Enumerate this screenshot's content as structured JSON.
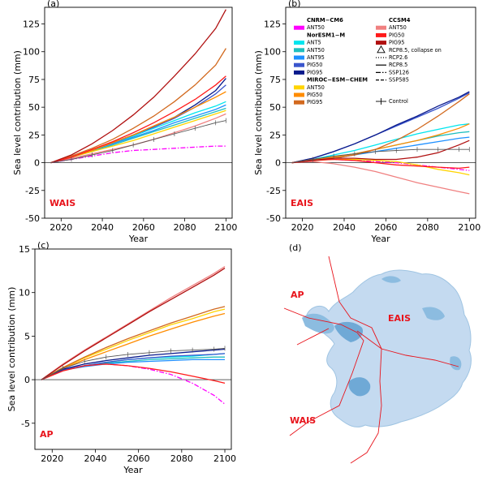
{
  "chart_data": [
    {
      "type": "line",
      "panel": "(a)",
      "region": "WAIS",
      "xlabel": "Year",
      "ylabel": "Sea level contribution (mm)",
      "xlim": [
        2012,
        2103
      ],
      "ylim": [
        -50,
        140
      ],
      "xticks": [
        2020,
        2040,
        2060,
        2080,
        2100
      ],
      "yticks": [
        -50,
        -25,
        0,
        25,
        50,
        75,
        100,
        125
      ],
      "years": [
        2015,
        2025,
        2035,
        2045,
        2055,
        2065,
        2075,
        2085,
        2095,
        2100
      ],
      "series": [
        {
          "name": "CNRM-CM6 ANT50",
          "color": "#ff00ff",
          "style": "dashdot",
          "values": [
            0,
            3,
            6,
            9,
            11,
            12,
            13,
            14,
            15,
            15
          ]
        },
        {
          "name": "NorESM1-M ANT5",
          "color": "#00e5ee",
          "style": "solid",
          "values": [
            0,
            5,
            11,
            17,
            24,
            31,
            38,
            45,
            51,
            55
          ]
        },
        {
          "name": "NorESM1-M ANT50",
          "color": "#1fbfbf",
          "style": "solid",
          "values": [
            0,
            5,
            10,
            16,
            22,
            28,
            34,
            40,
            46,
            49
          ]
        },
        {
          "name": "NorESM1-M ANT95",
          "color": "#1e90ff",
          "style": "solid",
          "values": [
            0,
            5,
            11,
            17,
            23,
            29,
            36,
            42,
            48,
            52
          ]
        },
        {
          "name": "NorESM1-M PIG50",
          "color": "#3a55cc",
          "style": "solid",
          "values": [
            0,
            5,
            11,
            18,
            25,
            32,
            40,
            50,
            62,
            70
          ]
        },
        {
          "name": "NorESM1-M PIG95",
          "color": "#0a1a8c",
          "style": "solid",
          "values": [
            0,
            5,
            11,
            18,
            25,
            33,
            41,
            52,
            65,
            76
          ]
        },
        {
          "name": "MIROC-ESM-CHEM ANT50",
          "color": "#ffd400",
          "style": "solid",
          "values": [
            0,
            5,
            10,
            15,
            20,
            26,
            32,
            38,
            44,
            47
          ]
        },
        {
          "name": "MIROC-ESM-CHEM PIG50",
          "color": "#ff8c00",
          "style": "solid",
          "values": [
            0,
            5,
            11,
            18,
            25,
            33,
            41,
            50,
            59,
            64
          ]
        },
        {
          "name": "MIROC-ESM-CHEM PIG95",
          "color": "#d2691e",
          "style": "solid",
          "values": [
            0,
            6,
            13,
            21,
            31,
            42,
            55,
            70,
            88,
            103
          ]
        },
        {
          "name": "CCSM4 ANT50",
          "color": "#f08080",
          "style": "solid",
          "values": [
            0,
            4,
            8,
            12,
            16,
            21,
            27,
            33,
            40,
            44
          ]
        },
        {
          "name": "CCSM4 PIG50",
          "color": "#ff1a1a",
          "style": "solid",
          "values": [
            0,
            5,
            12,
            19,
            27,
            36,
            46,
            57,
            70,
            78
          ]
        },
        {
          "name": "CCSM4 PIG95",
          "color": "#b01010",
          "style": "solid",
          "values": [
            0,
            7,
            17,
            29,
            43,
            59,
            78,
            98,
            121,
            138
          ]
        },
        {
          "name": "Control",
          "color": "#555555",
          "style": "errorbar",
          "values": [
            0,
            3,
            7,
            11,
            16,
            21,
            26,
            31,
            36,
            38
          ]
        }
      ]
    },
    {
      "type": "line",
      "panel": "(b)",
      "region": "EAIS",
      "xlabel": "Year",
      "ylabel": "Sea level contribution (mm)",
      "xlim": [
        2012,
        2103
      ],
      "ylim": [
        -50,
        140
      ],
      "xticks": [
        2020,
        2040,
        2060,
        2080,
        2100
      ],
      "yticks": [
        -50,
        -25,
        0,
        25,
        50,
        75,
        100,
        125
      ],
      "years": [
        2015,
        2025,
        2035,
        2045,
        2055,
        2065,
        2075,
        2085,
        2095,
        2100
      ],
      "series": [
        {
          "name": "CNRM-CM6 ANT50",
          "color": "#ff00ff",
          "style": "dashdot",
          "values": [
            0,
            3,
            3,
            2,
            1,
            0,
            -2,
            -4,
            -6,
            -7
          ]
        },
        {
          "name": "NorESM1-M ANT5",
          "color": "#00e5ee",
          "style": "solid",
          "values": [
            0,
            3,
            7,
            11,
            16,
            21,
            26,
            30,
            34,
            35
          ]
        },
        {
          "name": "NorESM1-M ANT50",
          "color": "#1fbfbf",
          "style": "solid",
          "values": [
            0,
            2,
            5,
            8,
            12,
            16,
            20,
            24,
            27,
            28
          ]
        },
        {
          "name": "NorESM1-M ANT95",
          "color": "#1e90ff",
          "style": "solid",
          "values": [
            0,
            2,
            4,
            7,
            10,
            13,
            16,
            19,
            22,
            23
          ]
        },
        {
          "name": "NorESM1-M PIG50",
          "color": "#3a55cc",
          "style": "solid",
          "values": [
            0,
            4,
            10,
            17,
            25,
            33,
            41,
            49,
            58,
            63
          ]
        },
        {
          "name": "NorESM1-M PIG95",
          "color": "#0a1a8c",
          "style": "solid",
          "values": [
            0,
            4,
            10,
            17,
            25,
            34,
            42,
            51,
            59,
            64
          ]
        },
        {
          "name": "MIROC-ESM-CHEM ANT50",
          "color": "#ffd400",
          "style": "solid",
          "values": [
            0,
            2,
            3,
            3,
            2,
            1,
            -2,
            -6,
            -9,
            -11
          ]
        },
        {
          "name": "MIROC-ESM-CHEM PIG50",
          "color": "#ff8c00",
          "style": "solid",
          "values": [
            0,
            3,
            5,
            8,
            12,
            16,
            20,
            25,
            31,
            35
          ]
        },
        {
          "name": "MIROC-ESM-CHEM PIG95",
          "color": "#d2691e",
          "style": "solid",
          "values": [
            0,
            2,
            4,
            7,
            12,
            20,
            30,
            42,
            55,
            62
          ]
        },
        {
          "name": "CCSM4 ANT50",
          "color": "#f08080",
          "style": "solid",
          "values": [
            0,
            1,
            -1,
            -4,
            -8,
            -13,
            -18,
            -22,
            -26,
            -28
          ]
        },
        {
          "name": "CCSM4 PIG50",
          "color": "#ff1a1a",
          "style": "solid",
          "values": [
            0,
            2,
            3,
            2,
            0,
            -2,
            -3,
            -4,
            -5,
            -4
          ]
        },
        {
          "name": "CCSM4 PIG95",
          "color": "#b01010",
          "style": "solid",
          "values": [
            0,
            2,
            4,
            4,
            3,
            3,
            5,
            9,
            16,
            20
          ]
        },
        {
          "name": "Control",
          "color": "#555555",
          "style": "errorbar",
          "values": [
            0,
            3,
            6,
            8,
            10,
            11,
            12,
            12,
            12,
            12
          ]
        }
      ]
    },
    {
      "type": "line",
      "panel": "(c)",
      "region": "AP",
      "xlabel": "Year",
      "ylabel": "Sea level contribution (mm)",
      "xlim": [
        2012,
        2103
      ],
      "ylim": [
        -8,
        15
      ],
      "xticks": [
        2020,
        2040,
        2060,
        2080,
        2100
      ],
      "yticks": [
        -5,
        0,
        5,
        10,
        15
      ],
      "years": [
        2015,
        2025,
        2035,
        2045,
        2055,
        2065,
        2075,
        2085,
        2095,
        2100
      ],
      "series": [
        {
          "name": "CNRM-CM6 ANT50",
          "color": "#ff00ff",
          "style": "dashdot",
          "values": [
            0,
            1.2,
            1.6,
            1.8,
            1.6,
            1.2,
            0.6,
            -0.4,
            -1.8,
            -2.8
          ]
        },
        {
          "name": "NorESM1-M ANT5",
          "color": "#00e5ee",
          "style": "solid",
          "values": [
            0,
            1.1,
            1.6,
            2.0,
            2.3,
            2.5,
            2.6,
            2.7,
            2.9,
            3.0
          ]
        },
        {
          "name": "NorESM1-M ANT50",
          "color": "#1fbfbf",
          "style": "solid",
          "values": [
            0,
            1.1,
            1.6,
            1.9,
            2.1,
            2.3,
            2.4,
            2.5,
            2.6,
            2.6
          ]
        },
        {
          "name": "NorESM1-M ANT95",
          "color": "#1e90ff",
          "style": "solid",
          "values": [
            0,
            1.1,
            1.5,
            1.8,
            2.0,
            2.1,
            2.2,
            2.3,
            2.3,
            2.3
          ]
        },
        {
          "name": "NorESM1-M PIG50",
          "color": "#3a55cc",
          "style": "solid",
          "values": [
            0,
            1.1,
            1.6,
            2.0,
            2.3,
            2.5,
            2.7,
            2.8,
            2.9,
            3.0
          ]
        },
        {
          "name": "NorESM1-M PIG95",
          "color": "#0a1a8c",
          "style": "solid",
          "values": [
            0,
            1.2,
            1.8,
            2.2,
            2.5,
            2.8,
            3.0,
            3.2,
            3.4,
            3.5
          ]
        },
        {
          "name": "MIROC-ESM-CHEM ANT50",
          "color": "#ffd400",
          "style": "solid",
          "values": [
            0,
            1.4,
            2.5,
            3.5,
            4.5,
            5.4,
            6.3,
            7.0,
            7.8,
            8.1
          ]
        },
        {
          "name": "MIROC-ESM-CHEM PIG50",
          "color": "#ff8c00",
          "style": "solid",
          "values": [
            0,
            1.3,
            2.3,
            3.2,
            4.1,
            5.0,
            5.8,
            6.6,
            7.3,
            7.6
          ]
        },
        {
          "name": "MIROC-ESM-CHEM PIG95",
          "color": "#d2691e",
          "style": "solid",
          "values": [
            0,
            1.4,
            2.6,
            3.7,
            4.7,
            5.6,
            6.5,
            7.3,
            8.1,
            8.4
          ]
        },
        {
          "name": "CCSM4 ANT50",
          "color": "#f08080",
          "style": "solid",
          "values": [
            0,
            1.8,
            3.4,
            4.9,
            6.4,
            7.9,
            9.4,
            10.8,
            12.2,
            13.0
          ]
        },
        {
          "name": "CCSM4 PIG50",
          "color": "#ff1a1a",
          "style": "solid",
          "values": [
            0,
            1.0,
            1.6,
            1.8,
            1.6,
            1.3,
            0.9,
            0.4,
            -0.1,
            -0.4
          ]
        },
        {
          "name": "CCSM4 PIG95",
          "color": "#b01010",
          "style": "solid",
          "values": [
            0,
            1.7,
            3.3,
            4.8,
            6.3,
            7.8,
            9.2,
            10.6,
            12.0,
            12.8
          ]
        },
        {
          "name": "Control",
          "color": "#555555",
          "style": "errorbar",
          "values": [
            0,
            1.3,
            2.1,
            2.6,
            2.9,
            3.1,
            3.3,
            3.4,
            3.5,
            3.6
          ]
        }
      ]
    }
  ],
  "legend": {
    "groups": [
      {
        "title": "CNRM−CM6",
        "items": [
          {
            "label": "ANT50",
            "color": "#ff00ff"
          }
        ]
      },
      {
        "title": "NorESM1−M",
        "items": [
          {
            "label": "ANT5",
            "color": "#00e5ee"
          },
          {
            "label": "ANT50",
            "color": "#1fbfbf"
          },
          {
            "label": "ANT95",
            "color": "#1e90ff"
          },
          {
            "label": "PIG50",
            "color": "#3a55cc"
          },
          {
            "label": "PIG95",
            "color": "#0a1a8c"
          }
        ]
      },
      {
        "title": "MIROC−ESM−CHEM",
        "items": [
          {
            "label": "ANT50",
            "color": "#ffd400"
          },
          {
            "label": "PIG50",
            "color": "#ff8c00"
          },
          {
            "label": "PIG95",
            "color": "#d2691e"
          }
        ]
      },
      {
        "title": "CCSM4",
        "items": [
          {
            "label": "ANT50",
            "color": "#f08080"
          },
          {
            "label": "PIG50",
            "color": "#ff1a1a"
          },
          {
            "label": "PIG95",
            "color": "#b01010"
          }
        ]
      }
    ],
    "styles": [
      {
        "label": "RCP8.5, collapse on",
        "marker": "triangle"
      },
      {
        "label": "RCP2.6",
        "marker": "dotted"
      },
      {
        "label": "RCP8.5",
        "marker": "solid"
      },
      {
        "label": "SSP126",
        "marker": "dashdot"
      },
      {
        "label": "SSP585",
        "marker": "dashed"
      }
    ],
    "control": {
      "label": "Control",
      "marker": "errorbar"
    }
  },
  "map": {
    "panel": "(d)",
    "labels": {
      "ap": "AP",
      "eais": "EAIS",
      "wais": "WAIS"
    }
  }
}
